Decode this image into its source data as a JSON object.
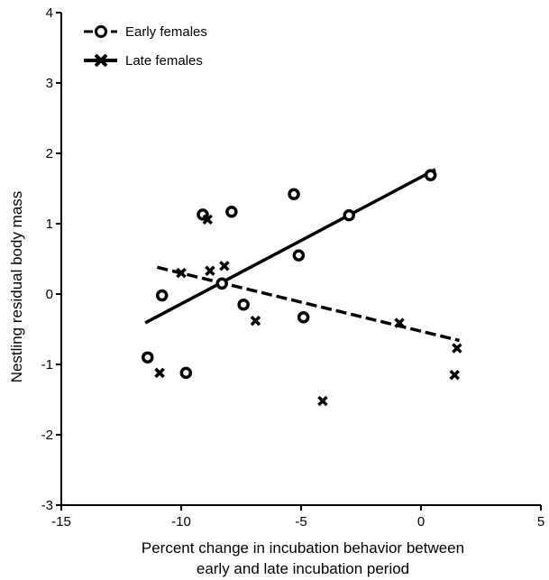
{
  "chart_data": {
    "type": "scatter",
    "xlabel_line1": "Percent change in incubation behavior between",
    "xlabel_line2": "early and late incubation period",
    "ylabel": "Nestling residual body mass",
    "xlim": [
      -15,
      5
    ],
    "ylim": [
      -3,
      4
    ],
    "xticks": [
      -15,
      -10,
      -5,
      0,
      5
    ],
    "yticks": [
      -3,
      -2,
      -1,
      0,
      1,
      2,
      3,
      4
    ],
    "grid": false,
    "legend_position": "top-left",
    "series": [
      {
        "name": "Early females",
        "marker": "circle",
        "points": [
          {
            "x": -11.4,
            "y": -0.9
          },
          {
            "x": -10.8,
            "y": -0.02
          },
          {
            "x": -9.8,
            "y": -1.12
          },
          {
            "x": -9.1,
            "y": 1.13
          },
          {
            "x": -7.9,
            "y": 1.17
          },
          {
            "x": -8.3,
            "y": 0.15
          },
          {
            "x": -7.4,
            "y": -0.15
          },
          {
            "x": -5.3,
            "y": 1.42
          },
          {
            "x": -5.1,
            "y": 0.55
          },
          {
            "x": -4.9,
            "y": -0.33
          },
          {
            "x": -3.0,
            "y": 1.12
          },
          {
            "x": 0.4,
            "y": 1.69
          }
        ],
        "fit": {
          "x": [
            -11.5,
            0.6
          ],
          "y": [
            -0.41,
            1.77
          ],
          "style": "solid"
        }
      },
      {
        "name": "Late females",
        "marker": "x",
        "points": [
          {
            "x": -10.9,
            "y": -1.12
          },
          {
            "x": -10.0,
            "y": 0.3
          },
          {
            "x": -8.9,
            "y": 1.06
          },
          {
            "x": -8.8,
            "y": 0.33
          },
          {
            "x": -8.2,
            "y": 0.4
          },
          {
            "x": -6.9,
            "y": -0.38
          },
          {
            "x": -4.1,
            "y": -1.52
          },
          {
            "x": -0.9,
            "y": -0.41
          },
          {
            "x": 1.4,
            "y": -1.15
          },
          {
            "x": 1.5,
            "y": -0.77
          }
        ],
        "fit": {
          "x": [
            -11.0,
            1.6
          ],
          "y": [
            0.38,
            -0.66
          ],
          "style": "dashed"
        }
      }
    ]
  }
}
